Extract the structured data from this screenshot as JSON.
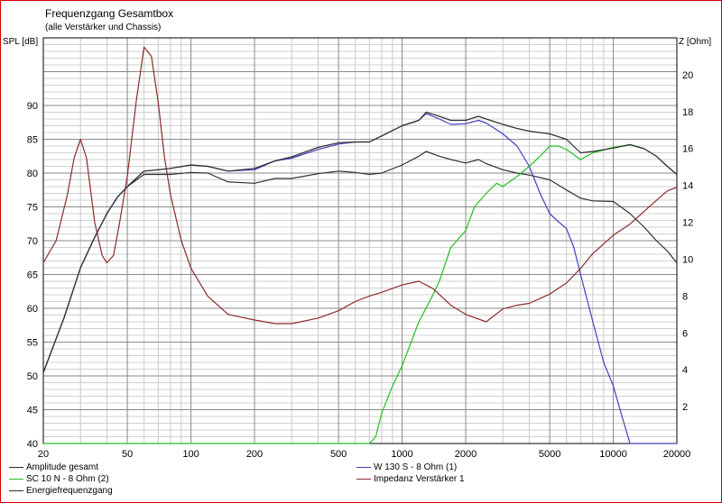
{
  "chart_data": {
    "type": "line",
    "title": "Frequenzgang Gesamtbox",
    "subtitle": "(alle Verstärker und Chassis)",
    "ylabel": "SPL [dB]",
    "y2label": "Z [Ohm]",
    "xscale": "log",
    "xlim": [
      20,
      20000
    ],
    "ylim": [
      40,
      100
    ],
    "y2lim": [
      0,
      22
    ],
    "xticks": [
      20,
      50,
      100,
      200,
      500,
      1000,
      2000,
      5000,
      10000,
      20000
    ],
    "xtick_labels": [
      "20",
      "50",
      "100",
      "200",
      "500",
      "1000",
      "2000",
      "5000",
      "10000",
      "20000"
    ],
    "yticks": [
      40,
      45,
      50,
      55,
      60,
      65,
      70,
      75,
      80,
      85,
      90
    ],
    "y2ticks": [
      2,
      4,
      6,
      8,
      10,
      12,
      14,
      16,
      18,
      20
    ],
    "grid": true,
    "legend_position": "bottom",
    "series": [
      {
        "name": "Amplitude gesamt",
        "axis": "left",
        "color": "#303030",
        "x": [
          20,
          25,
          30,
          35,
          40,
          45,
          50,
          60,
          70,
          80,
          100,
          120,
          150,
          200,
          250,
          300,
          400,
          500,
          600,
          700,
          800,
          1000,
          1200,
          1300,
          1500,
          1700,
          2000,
          2300,
          2500,
          3000,
          3500,
          4000,
          5000,
          6000,
          7000,
          8000,
          10000,
          12000,
          14000,
          16000,
          18000,
          20000
        ],
        "y": [
          50.5,
          58.5,
          66,
          70.5,
          74,
          76.5,
          78,
          79.8,
          79.8,
          79.8,
          80.1,
          80,
          78.7,
          78.5,
          79.2,
          79.2,
          79.9,
          80.3,
          80.1,
          79.8,
          80,
          81.2,
          82.5,
          83.2,
          82.5,
          82,
          81.5,
          82,
          81.4,
          80.5,
          80,
          79.7,
          79,
          77.5,
          76.3,
          75.9,
          75.8,
          74,
          72,
          70,
          68.5,
          66.7
        ]
      },
      {
        "name": "W 130 S - 8 Ohm (1)",
        "axis": "left",
        "color": "#4040c0",
        "x": [
          20,
          25,
          30,
          35,
          40,
          45,
          50,
          60,
          70,
          80,
          100,
          120,
          150,
          200,
          250,
          300,
          400,
          500,
          600,
          700,
          800,
          1000,
          1200,
          1300,
          1500,
          1700,
          2000,
          2300,
          2500,
          3000,
          3500,
          4000,
          4500,
          5000,
          5500,
          6000,
          6500,
          7000,
          8000,
          9000,
          10000,
          11000,
          12000,
          14000,
          16000,
          18000,
          20000
        ],
        "y": [
          50.5,
          58.5,
          66,
          70.5,
          74,
          76.5,
          78,
          80.3,
          80.5,
          80.7,
          81.2,
          81,
          80.3,
          80.5,
          81.8,
          82.2,
          83.5,
          84.3,
          84.6,
          84.6,
          85.5,
          87,
          87.8,
          88.8,
          88,
          87.2,
          87.3,
          87.8,
          87.4,
          85.8,
          84,
          81,
          77,
          74,
          72.8,
          71.8,
          69,
          65,
          58,
          52,
          48.5,
          44,
          40,
          40,
          40,
          40,
          40
        ]
      },
      {
        "name": "SC 10 N - 8 Ohm (2)",
        "axis": "left",
        "color": "#20c020",
        "x": [
          20,
          100,
          500,
          700,
          750,
          800,
          900,
          1000,
          1200,
          1400,
          1500,
          1700,
          2000,
          2200,
          2500,
          2800,
          3000,
          3500,
          4000,
          4500,
          5000,
          5500,
          6000,
          7000,
          8000,
          10000,
          12000,
          14000,
          16000,
          18000,
          20000
        ],
        "y": [
          40,
          40,
          40,
          40,
          41,
          44.5,
          48.5,
          51.5,
          58,
          62,
          64,
          69,
          71.5,
          75,
          77,
          78.5,
          78,
          79.5,
          81,
          82.5,
          84,
          84,
          83.5,
          82,
          83,
          83.8,
          84.2,
          83.6,
          82.5,
          81,
          79.8
        ]
      },
      {
        "name": "Impedanz Verstärker 1",
        "axis": "right",
        "color": "#8c2a2a",
        "x": [
          20,
          23,
          26,
          28,
          30,
          32,
          35,
          38,
          40,
          43,
          46,
          50,
          55,
          60,
          65,
          70,
          75,
          80,
          90,
          100,
          120,
          150,
          200,
          250,
          300,
          400,
          500,
          600,
          700,
          800,
          1000,
          1200,
          1400,
          1700,
          2000,
          2500,
          3000,
          3500,
          4000,
          5000,
          6000,
          7000,
          8000,
          10000,
          12000,
          15000,
          18000,
          20000
        ],
        "y": [
          9.8,
          11,
          13.5,
          15.5,
          16.5,
          15.5,
          12,
          10.2,
          9.8,
          10.2,
          12,
          14.5,
          18.5,
          21.5,
          21,
          18.5,
          15.5,
          13.5,
          11,
          9.5,
          8,
          7,
          6.7,
          6.5,
          6.5,
          6.8,
          7.2,
          7.7,
          8,
          8.2,
          8.6,
          8.8,
          8.4,
          7.5,
          7,
          6.6,
          7.3,
          7.5,
          7.6,
          8.1,
          8.7,
          9.5,
          10.3,
          11.3,
          11.9,
          12.9,
          13.7,
          13.9
        ]
      },
      {
        "name": "Energiefrequenzgang",
        "axis": "left",
        "color": "#303030",
        "x": [
          20,
          25,
          30,
          35,
          40,
          45,
          50,
          60,
          70,
          80,
          100,
          120,
          150,
          200,
          250,
          300,
          400,
          500,
          600,
          700,
          800,
          1000,
          1200,
          1300,
          1500,
          1700,
          2000,
          2300,
          2500,
          3000,
          3500,
          4000,
          5000,
          6000,
          7000,
          8000,
          10000,
          12000,
          14000,
          16000,
          18000,
          20000
        ],
        "y": [
          50.5,
          58.5,
          66,
          70.5,
          74,
          76.5,
          78,
          80.3,
          80.5,
          80.7,
          81.2,
          81,
          80.3,
          80.7,
          81.8,
          82.4,
          83.8,
          84.5,
          84.6,
          84.6,
          85.5,
          87,
          87.8,
          89,
          88.4,
          87.8,
          87.8,
          88.4,
          88,
          87.2,
          86.6,
          86.2,
          85.8,
          85,
          83,
          83.2,
          83.7,
          84.2,
          83.6,
          82.5,
          81,
          79.8
        ]
      }
    ]
  }
}
